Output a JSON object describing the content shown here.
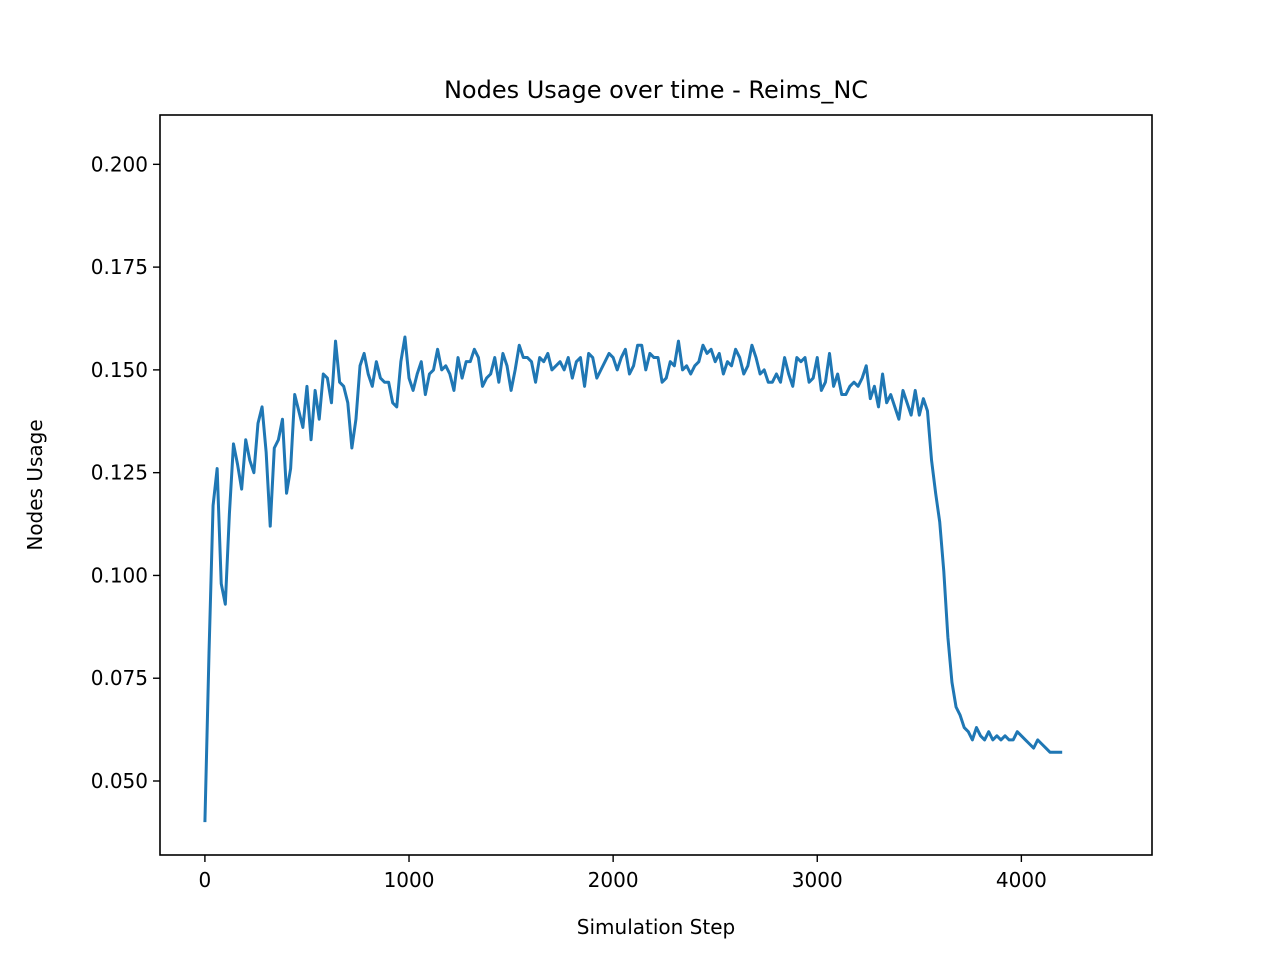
{
  "chart_data": {
    "type": "line",
    "title": "Nodes Usage over time - Reims_NC",
    "xlabel": "Simulation Step",
    "ylabel": "Nodes Usage",
    "xlim": [
      -220,
      4640
    ],
    "ylim": [
      0.032,
      0.212
    ],
    "xticks": [
      0,
      1000,
      2000,
      3000,
      4000
    ],
    "xtick_labels": [
      "0",
      "1000",
      "2000",
      "3000",
      "4000"
    ],
    "yticks": [
      0.05,
      0.075,
      0.1,
      0.125,
      0.15,
      0.175,
      0.2
    ],
    "ytick_labels": [
      "0.050",
      "0.075",
      "0.100",
      "0.125",
      "0.150",
      "0.175",
      "0.200"
    ],
    "grid": false,
    "legend": "none",
    "series": [
      {
        "color": "#1f77b4",
        "x_start": 0,
        "x_step": 20,
        "values": [
          0.04,
          0.081,
          0.117,
          0.126,
          0.098,
          0.093,
          0.115,
          0.132,
          0.127,
          0.121,
          0.133,
          0.128,
          0.125,
          0.137,
          0.141,
          0.13,
          0.112,
          0.131,
          0.133,
          0.138,
          0.12,
          0.126,
          0.144,
          0.14,
          0.136,
          0.146,
          0.133,
          0.145,
          0.138,
          0.149,
          0.148,
          0.142,
          0.157,
          0.147,
          0.146,
          0.142,
          0.131,
          0.138,
          0.151,
          0.154,
          0.149,
          0.146,
          0.152,
          0.148,
          0.147,
          0.147,
          0.142,
          0.141,
          0.152,
          0.158,
          0.148,
          0.145,
          0.149,
          0.152,
          0.144,
          0.149,
          0.15,
          0.155,
          0.15,
          0.151,
          0.149,
          0.145,
          0.153,
          0.148,
          0.152,
          0.152,
          0.155,
          0.153,
          0.146,
          0.148,
          0.149,
          0.153,
          0.147,
          0.154,
          0.151,
          0.145,
          0.15,
          0.156,
          0.153,
          0.153,
          0.152,
          0.147,
          0.153,
          0.152,
          0.154,
          0.15,
          0.151,
          0.152,
          0.15,
          0.153,
          0.148,
          0.152,
          0.153,
          0.146,
          0.154,
          0.153,
          0.148,
          0.15,
          0.152,
          0.154,
          0.153,
          0.15,
          0.153,
          0.155,
          0.149,
          0.151,
          0.156,
          0.156,
          0.15,
          0.154,
          0.153,
          0.153,
          0.147,
          0.148,
          0.152,
          0.151,
          0.157,
          0.15,
          0.151,
          0.149,
          0.151,
          0.152,
          0.156,
          0.154,
          0.155,
          0.152,
          0.154,
          0.149,
          0.152,
          0.151,
          0.155,
          0.153,
          0.149,
          0.151,
          0.156,
          0.153,
          0.149,
          0.15,
          0.147,
          0.147,
          0.149,
          0.147,
          0.153,
          0.149,
          0.146,
          0.153,
          0.152,
          0.153,
          0.147,
          0.148,
          0.153,
          0.145,
          0.147,
          0.154,
          0.146,
          0.149,
          0.144,
          0.144,
          0.146,
          0.147,
          0.146,
          0.148,
          0.151,
          0.143,
          0.146,
          0.141,
          0.149,
          0.142,
          0.144,
          0.141,
          0.138,
          0.145,
          0.142,
          0.139,
          0.145,
          0.139,
          0.143,
          0.14,
          0.128,
          0.12,
          0.113,
          0.101,
          0.085,
          0.074,
          0.068,
          0.066,
          0.063,
          0.062,
          0.06,
          0.063,
          0.061,
          0.06,
          0.062,
          0.06,
          0.061,
          0.06,
          0.061,
          0.06,
          0.06,
          0.062,
          0.061,
          0.06,
          0.059,
          0.058,
          0.06,
          0.059,
          0.058,
          0.057,
          0.057,
          0.057,
          0.057
        ]
      }
    ]
  }
}
